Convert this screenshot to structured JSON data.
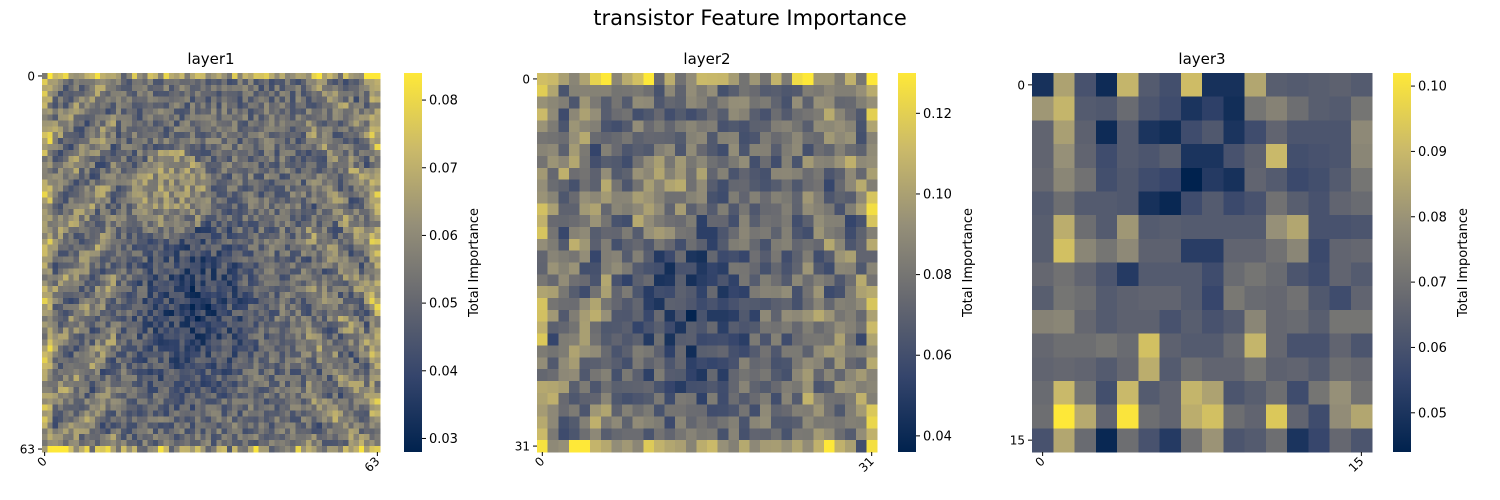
{
  "figure": {
    "title": "transistor Feature Importance"
  },
  "chart_data": [
    {
      "type": "heatmap",
      "title": "layer1",
      "grid_size": 64,
      "x_ticks": [
        "0",
        "63"
      ],
      "y_ticks": [
        "0",
        "63"
      ],
      "colorbar_label": "Total Importance",
      "colorbar_range": [
        0.028,
        0.084
      ],
      "colorbar_ticks": [
        0.03,
        0.04,
        0.05,
        0.06,
        0.07,
        0.08
      ],
      "colorbar_tick_labels": [
        "0.03",
        "0.04",
        "0.05",
        "0.06",
        "0.07",
        "0.08"
      ],
      "colormap": "cividis",
      "colormap_stops": [
        "#00224e",
        "#35456c",
        "#666870",
        "#958f78",
        "#cbba69",
        "#fee838"
      ]
    },
    {
      "type": "heatmap",
      "title": "layer2",
      "grid_size": 32,
      "x_ticks": [
        "0",
        "31"
      ],
      "y_ticks": [
        "0",
        "31"
      ],
      "colorbar_label": "Total Importance",
      "colorbar_range": [
        0.036,
        0.13
      ],
      "colorbar_ticks": [
        0.04,
        0.06,
        0.08,
        0.1,
        0.12
      ],
      "colorbar_tick_labels": [
        "0.04",
        "0.06",
        "0.08",
        "0.10",
        "0.12"
      ],
      "colormap": "cividis",
      "colormap_stops": [
        "#00224e",
        "#35456c",
        "#666870",
        "#958f78",
        "#cbba69",
        "#fee838"
      ]
    },
    {
      "type": "heatmap",
      "title": "layer3",
      "grid_size": 16,
      "x_ticks": [
        "0",
        "15"
      ],
      "y_ticks": [
        "0",
        "15"
      ],
      "colorbar_label": "Total Importance",
      "colorbar_range": [
        0.044,
        0.102
      ],
      "colorbar_ticks": [
        0.05,
        0.06,
        0.07,
        0.08,
        0.09,
        0.1
      ],
      "colorbar_tick_labels": [
        "0.05",
        "0.06",
        "0.07",
        "0.08",
        "0.09",
        "0.10"
      ],
      "colormap": "cividis",
      "colormap_stops": [
        "#00224e",
        "#35456c",
        "#666870",
        "#958f78",
        "#cbba69",
        "#fee838"
      ],
      "values": [
        [
          0.049,
          0.084,
          0.06,
          0.047,
          0.089,
          0.063,
          0.059,
          0.091,
          0.049,
          0.049,
          0.085,
          0.064,
          0.063,
          0.064,
          0.065,
          0.063
        ],
        [
          0.081,
          0.089,
          0.063,
          0.062,
          0.068,
          0.061,
          0.058,
          0.05,
          0.054,
          0.048,
          0.071,
          0.075,
          0.069,
          0.064,
          0.063,
          0.071
        ],
        [
          0.066,
          0.083,
          0.065,
          0.047,
          0.063,
          0.05,
          0.048,
          0.058,
          0.062,
          0.05,
          0.058,
          0.066,
          0.061,
          0.061,
          0.061,
          0.077
        ],
        [
          0.066,
          0.079,
          0.066,
          0.058,
          0.063,
          0.061,
          0.064,
          0.05,
          0.05,
          0.06,
          0.065,
          0.09,
          0.059,
          0.06,
          0.061,
          0.076
        ],
        [
          0.067,
          0.076,
          0.07,
          0.059,
          0.062,
          0.058,
          0.056,
          0.044,
          0.052,
          0.049,
          0.066,
          0.063,
          0.057,
          0.059,
          0.063,
          0.071
        ],
        [
          0.063,
          0.069,
          0.063,
          0.063,
          0.062,
          0.049,
          0.046,
          0.058,
          0.063,
          0.057,
          0.06,
          0.07,
          0.064,
          0.06,
          0.066,
          0.068
        ],
        [
          0.064,
          0.087,
          0.069,
          0.063,
          0.081,
          0.063,
          0.064,
          0.063,
          0.063,
          0.063,
          0.063,
          0.079,
          0.085,
          0.06,
          0.06,
          0.061
        ],
        [
          0.064,
          0.092,
          0.076,
          0.071,
          0.077,
          0.065,
          0.065,
          0.053,
          0.053,
          0.066,
          0.066,
          0.07,
          0.076,
          0.057,
          0.066,
          0.067
        ],
        [
          0.067,
          0.07,
          0.066,
          0.061,
          0.052,
          0.063,
          0.063,
          0.063,
          0.058,
          0.068,
          0.071,
          0.068,
          0.061,
          0.058,
          0.066,
          0.063
        ],
        [
          0.064,
          0.071,
          0.069,
          0.063,
          0.065,
          0.066,
          0.066,
          0.063,
          0.056,
          0.072,
          0.068,
          0.067,
          0.07,
          0.062,
          0.058,
          0.066
        ],
        [
          0.075,
          0.076,
          0.067,
          0.063,
          0.065,
          0.065,
          0.06,
          0.064,
          0.06,
          0.063,
          0.076,
          0.067,
          0.068,
          0.064,
          0.071,
          0.071
        ],
        [
          0.067,
          0.069,
          0.069,
          0.071,
          0.068,
          0.092,
          0.065,
          0.063,
          0.063,
          0.068,
          0.089,
          0.067,
          0.06,
          0.06,
          0.066,
          0.061
        ],
        [
          0.066,
          0.067,
          0.066,
          0.063,
          0.067,
          0.087,
          0.063,
          0.069,
          0.066,
          0.066,
          0.071,
          0.065,
          0.066,
          0.063,
          0.069,
          0.067
        ],
        [
          0.068,
          0.09,
          0.071,
          0.059,
          0.09,
          0.063,
          0.066,
          0.089,
          0.084,
          0.061,
          0.064,
          0.069,
          0.058,
          0.071,
          0.079,
          0.07
        ],
        [
          0.069,
          0.102,
          0.086,
          0.066,
          0.101,
          0.069,
          0.066,
          0.087,
          0.092,
          0.069,
          0.066,
          0.094,
          0.066,
          0.058,
          0.078,
          0.085
        ],
        [
          0.06,
          0.085,
          0.068,
          0.046,
          0.069,
          0.06,
          0.052,
          0.07,
          0.08,
          0.061,
          0.063,
          0.069,
          0.05,
          0.056,
          0.067,
          0.061
        ]
      ]
    }
  ]
}
